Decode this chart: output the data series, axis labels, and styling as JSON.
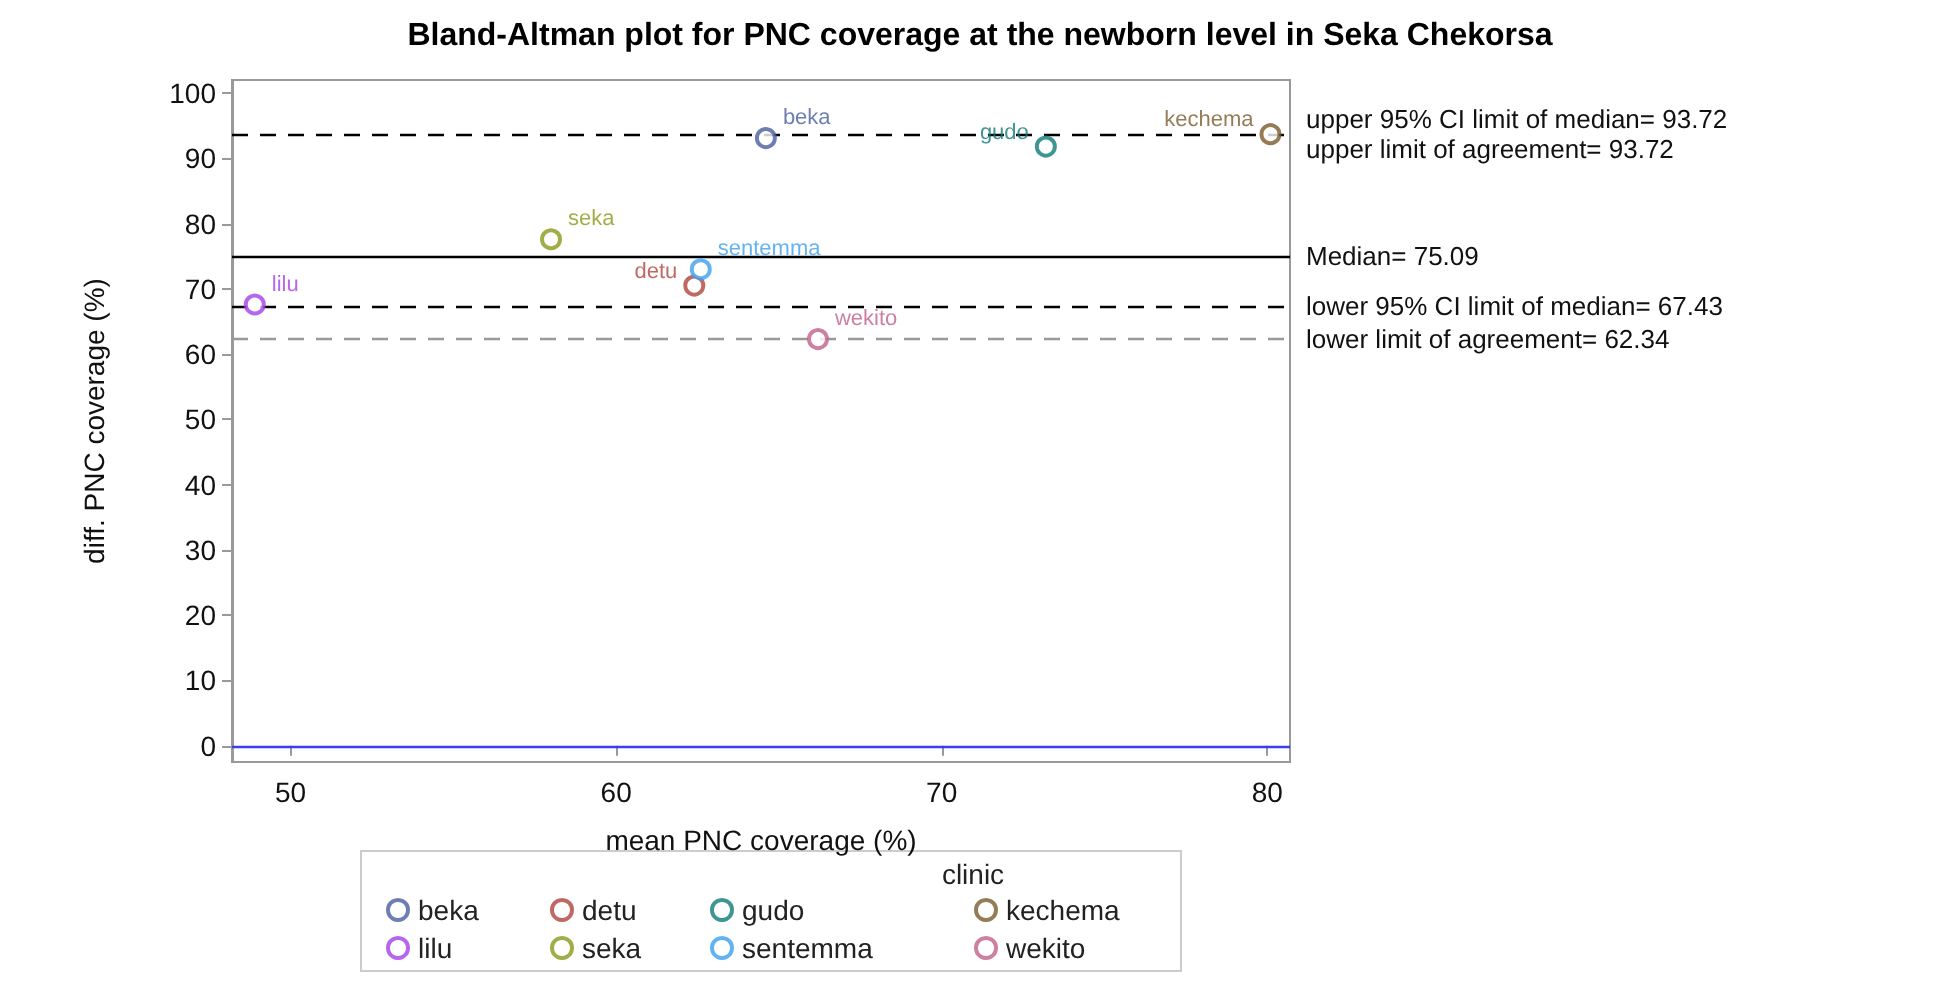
{
  "chart_data": {
    "type": "scatter",
    "title": "Bland-Altman plot for PNC coverage at the newborn level in Seka Chekorsa",
    "xlabel": "mean PNC coverage (%)",
    "ylabel": "diff. PNC coverage (%)",
    "legend_title": "clinic",
    "xlim": [
      48.2,
      80.7
    ],
    "xticks": [
      50,
      60,
      70,
      80
    ],
    "ylim": [
      -2.5,
      102
    ],
    "yticks": [
      0,
      10,
      20,
      30,
      40,
      50,
      60,
      70,
      80,
      90,
      100
    ],
    "grid": false,
    "legend": "bottom",
    "marker": "circle",
    "series": [
      {
        "name": "beka",
        "color": "#4a5ea0",
        "x": [
          64.6
        ],
        "values": [
          93.1
        ]
      },
      {
        "name": "detu",
        "color": "#b0443c",
        "x": [
          62.4
        ],
        "values": [
          70.5
        ]
      },
      {
        "name": "gudo",
        "color": "#0e7a78",
        "x": [
          73.2
        ],
        "values": [
          91.8
        ]
      },
      {
        "name": "kechema",
        "color": "#7a5a2c",
        "x": [
          80.1
        ],
        "values": [
          93.7
        ]
      },
      {
        "name": "lilu",
        "color": "#a43ee8",
        "x": [
          48.9
        ],
        "values": [
          67.6
        ]
      },
      {
        "name": "seka",
        "color": "#8a9a1a",
        "x": [
          58.0
        ],
        "values": [
          77.6
        ]
      },
      {
        "name": "sentemma",
        "color": "#3ca0f0",
        "x": [
          62.6
        ],
        "values": [
          73.0
        ]
      },
      {
        "name": "wekito",
        "color": "#c0608a",
        "x": [
          66.2
        ],
        "values": [
          62.3
        ]
      }
    ],
    "ref_lines": [
      {
        "axis": "y",
        "value": 93.72,
        "label": "upper 95% CI limit of median= 93.72\nupper limit of agreement= 93.72",
        "color": "#000000",
        "line_style": "dashed"
      },
      {
        "axis": "y",
        "value": 75.09,
        "label": "Median= 75.09",
        "color": "#000000",
        "line_style": "solid"
      },
      {
        "axis": "y",
        "value": 67.43,
        "label": "lower 95% CI limit of median= 67.43",
        "color": "#000000",
        "line_style": "dashed"
      },
      {
        "axis": "y",
        "value": 62.34,
        "label": "lower limit of agreement= 62.34",
        "color": "#999999",
        "line_style": "dashed"
      },
      {
        "axis": "y",
        "value": 0,
        "label": null,
        "color": "#3c3cf0",
        "line_style": "solid"
      }
    ]
  }
}
